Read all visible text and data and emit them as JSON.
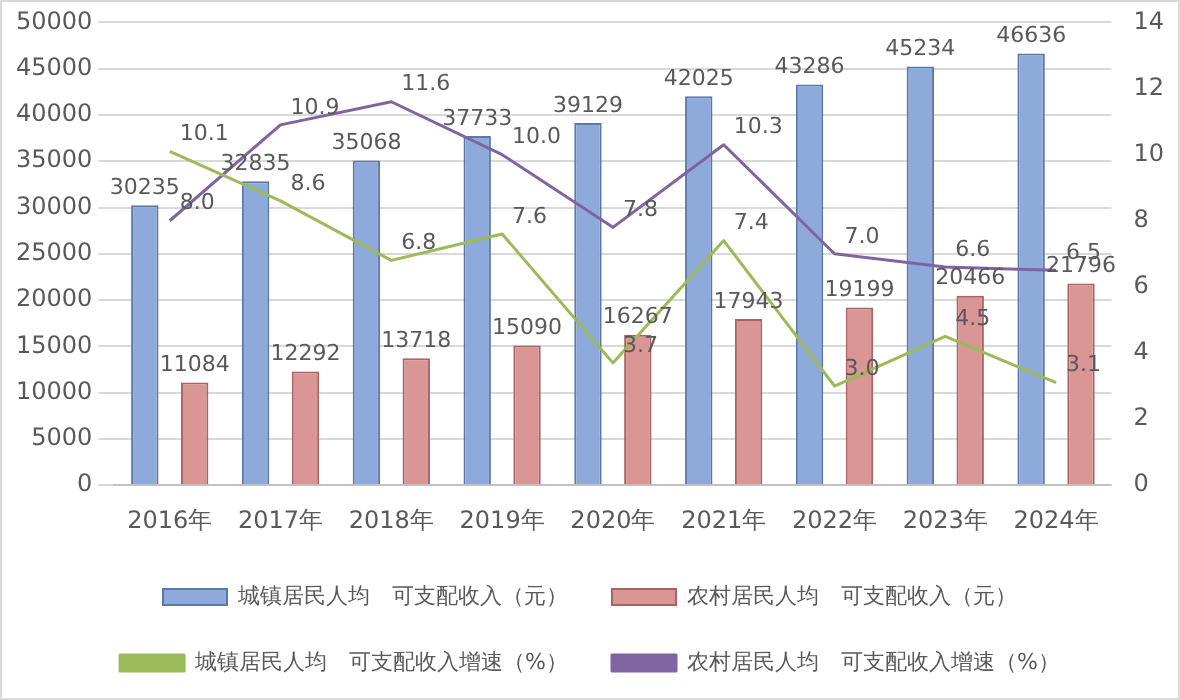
{
  "chart_data": {
    "type": "bar",
    "categories": [
      "2016年",
      "2017年",
      "2018年",
      "2019年",
      "2020年",
      "2021年",
      "2022年",
      "2023年",
      "2024年"
    ],
    "series": [
      {
        "name": "城镇居民人均　可支配收入（元）",
        "color": "#8eaadb",
        "values": [
          30235,
          32835,
          35068,
          37733,
          39129,
          42025,
          43286,
          45234,
          46636
        ]
      },
      {
        "name": "农村居民人均　可支配收入（元）",
        "color": "#d99694",
        "values": [
          11084,
          12292,
          13718,
          15090,
          16267,
          17943,
          19199,
          20466,
          21796
        ]
      },
      {
        "name": "城镇居民人均　可支配收入增速（%）",
        "type": "line",
        "axis": "y2",
        "color": "#9bbb59",
        "values": [
          10.1,
          8.6,
          6.8,
          7.6,
          3.7,
          7.4,
          3.0,
          4.5,
          3.1
        ],
        "value_labels": [
          "10.1",
          "8.6",
          "6.8",
          "7.6",
          "3.7",
          "7.4",
          "3.0",
          "4.5",
          "3.1"
        ]
      },
      {
        "name": "农村居民人均　可支配收入增速（%）",
        "type": "line",
        "axis": "y2",
        "color": "#8064a2",
        "values": [
          8.0,
          10.9,
          11.6,
          10.0,
          7.8,
          10.3,
          7.0,
          6.6,
          6.5
        ],
        "value_labels": [
          "8.0",
          "10.9",
          "11.6",
          "10.0",
          "7.8",
          "10.3",
          "7.0",
          "6.6",
          "6.5"
        ]
      }
    ],
    "ylim": [
      0,
      50000
    ],
    "yticks": [
      0,
      5000,
      10000,
      15000,
      20000,
      25000,
      30000,
      35000,
      40000,
      45000,
      50000
    ],
    "y2lim": [
      0,
      14
    ],
    "y2ticks": [
      0,
      2,
      4,
      6,
      8,
      10,
      12,
      14
    ],
    "grid": "y",
    "legend": "bottom",
    "data_labels": true,
    "marker": "none"
  }
}
